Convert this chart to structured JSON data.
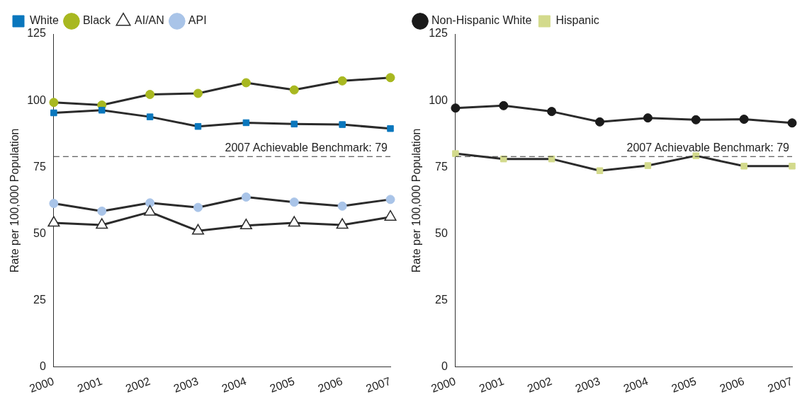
{
  "chart_data": [
    {
      "type": "line",
      "ylabel": "Rate per 100,000 Population",
      "categories": [
        "2000",
        "2001",
        "2002",
        "2003",
        "2004",
        "2005",
        "2006",
        "2007"
      ],
      "ylim": [
        0,
        125
      ],
      "yticks": [
        0,
        25,
        50,
        75,
        100,
        125
      ],
      "grid": false,
      "legend": "top left",
      "series": [
        {
          "name": "White",
          "color": "#0a77bd",
          "marker": "square",
          "values": [
            95.4,
            96.4,
            93.9,
            90.3,
            91.7,
            91.2,
            91.0,
            89.5
          ]
        },
        {
          "name": "Black",
          "color": "#a8b820",
          "marker": "circle",
          "values": [
            99.3,
            98.3,
            102.3,
            102.7,
            106.7,
            104.0,
            107.4,
            108.6
          ]
        },
        {
          "name": "AI/AN",
          "color": "#ffffff",
          "marker": "triangle",
          "values": [
            54.1,
            53.3,
            58.2,
            51.1,
            53.1,
            54.1,
            53.3,
            56.3
          ]
        },
        {
          "name": "API",
          "color": "#a9c4e8",
          "marker": "circle",
          "values": [
            61.4,
            58.5,
            61.6,
            59.9,
            63.8,
            61.9,
            60.4,
            62.9
          ]
        }
      ],
      "ref_lines": [
        {
          "axis": "y",
          "value": 79,
          "label": "2007 Achievable Benchmark: 79",
          "line_style": "dashed"
        }
      ]
    },
    {
      "type": "line",
      "ylabel": "Rate per 100,000 Population",
      "categories": [
        "2000",
        "2001",
        "2002",
        "2003",
        "2004",
        "2005",
        "2006",
        "2007"
      ],
      "ylim": [
        0,
        125
      ],
      "yticks": [
        0,
        25,
        50,
        75,
        100,
        125
      ],
      "grid": false,
      "legend": "top left",
      "series": [
        {
          "name": "Non-Hispanic White",
          "color": "#1a1a1a",
          "marker": "circle",
          "values": [
            97.2,
            98.1,
            95.9,
            92.0,
            93.5,
            92.8,
            93.0,
            91.6
          ]
        },
        {
          "name": "Hispanic",
          "color": "#d3da8c",
          "marker": "square",
          "values": [
            80.1,
            78.1,
            78.1,
            73.7,
            75.6,
            79.3,
            75.4,
            75.4
          ]
        }
      ],
      "ref_lines": [
        {
          "axis": "y",
          "value": 79,
          "label": "2007 Achievable Benchmark: 79",
          "line_style": "dashed"
        }
      ]
    }
  ]
}
